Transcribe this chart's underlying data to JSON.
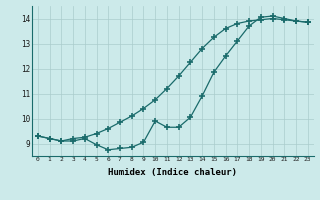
{
  "xlabel": "Humidex (Indice chaleur)",
  "bg_color": "#cceaea",
  "grid_color": "#aacccc",
  "line_color": "#1a6b6b",
  "xlim": [
    -0.5,
    23.5
  ],
  "ylim": [
    8.5,
    14.5
  ],
  "xticks": [
    0,
    1,
    2,
    3,
    4,
    5,
    6,
    7,
    8,
    9,
    10,
    11,
    12,
    13,
    14,
    15,
    16,
    17,
    18,
    19,
    20,
    21,
    22,
    23
  ],
  "yticks": [
    9,
    10,
    11,
    12,
    13,
    14
  ],
  "line1_x": [
    0,
    1,
    2,
    3,
    4,
    5,
    6,
    7,
    8,
    9,
    10,
    11,
    12,
    13,
    14,
    15,
    16,
    17,
    18,
    19,
    20,
    21,
    22,
    23
  ],
  "line1_y": [
    9.3,
    9.2,
    9.1,
    9.2,
    9.25,
    9.4,
    9.6,
    9.85,
    10.1,
    10.4,
    10.75,
    11.2,
    11.7,
    12.25,
    12.8,
    13.25,
    13.6,
    13.8,
    13.9,
    13.95,
    14.0,
    13.95,
    13.9,
    13.85
  ],
  "line2_x": [
    0,
    1,
    2,
    3,
    4,
    5,
    6,
    7,
    8,
    9,
    10,
    11,
    12,
    13,
    14,
    15,
    16,
    17,
    18,
    19,
    20,
    21,
    22,
    23
  ],
  "line2_y": [
    9.3,
    9.2,
    9.1,
    9.1,
    9.2,
    8.95,
    8.75,
    8.8,
    8.85,
    9.05,
    9.9,
    9.65,
    9.65,
    10.05,
    10.9,
    11.85,
    12.5,
    13.1,
    13.7,
    14.05,
    14.1,
    14.0,
    13.9,
    13.85
  ]
}
